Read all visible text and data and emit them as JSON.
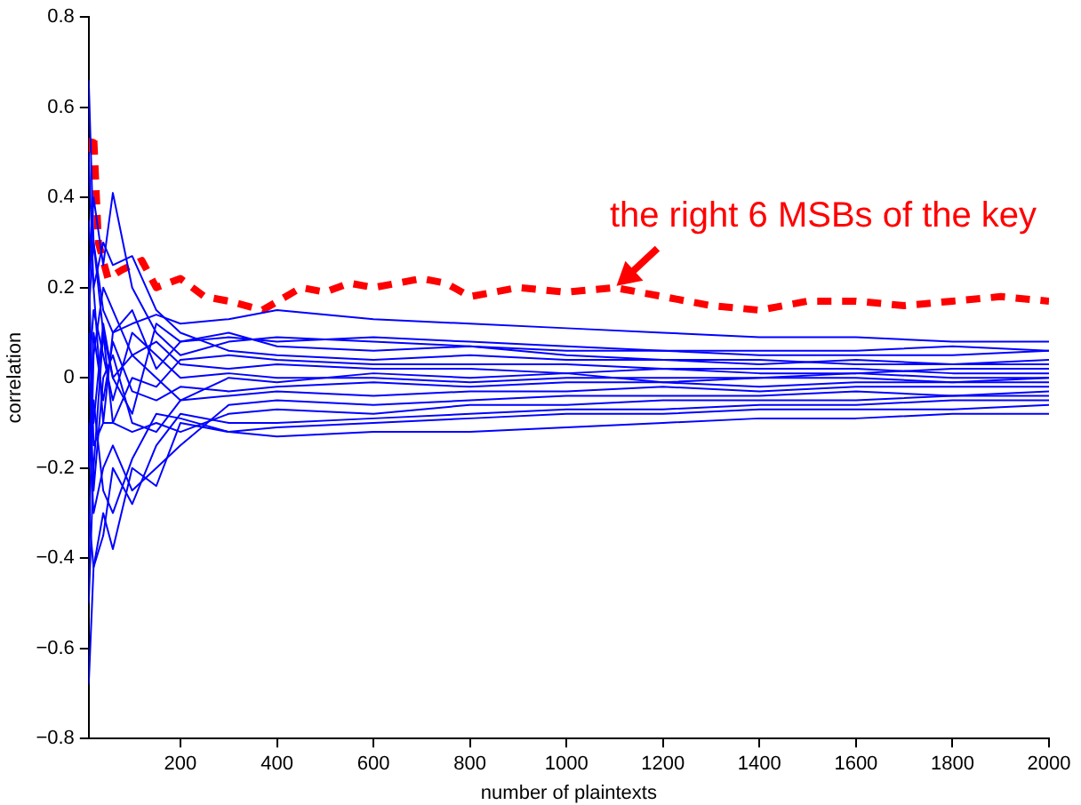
{
  "chart_data": {
    "type": "line",
    "xlabel": "number of plaintexts",
    "ylabel": "correlation",
    "x": [
      10,
      20,
      40,
      60,
      100,
      150,
      200,
      300,
      400,
      600,
      800,
      1000,
      1200,
      1400,
      1600,
      1800,
      2000
    ],
    "xlim": [
      10,
      2000
    ],
    "xticks": [
      200,
      400,
      600,
      800,
      1000,
      1200,
      1400,
      1600,
      1800,
      2000
    ],
    "ylim": [
      -0.8,
      0.8
    ],
    "yticks": [
      {
        "value": -0.8,
        "label": "−0.8"
      },
      {
        "value": -0.6,
        "label": "−0.6"
      },
      {
        "value": -0.4,
        "label": "−0.4"
      },
      {
        "value": -0.2,
        "label": "−0.2"
      },
      0,
      0.2,
      0.4,
      0.6,
      0.8
    ],
    "grid": false,
    "legend": false,
    "marker": "none",
    "line_style": "solid",
    "annotations": [
      {
        "text": "the right 6 MSBs of the key",
        "x": 1100,
        "y": 0.2
      }
    ],
    "series": [
      {
        "color": "#0000ff",
        "values": [
          0.66,
          0.3,
          0.15,
          0.1,
          0.12,
          0.14,
          0.12,
          0.13,
          0.15,
          0.13,
          0.12,
          0.11,
          0.1,
          0.09,
          0.09,
          0.08,
          0.08
        ]
      },
      {
        "color": "#0000ff",
        "values": [
          -0.68,
          -0.42,
          -0.3,
          -0.38,
          -0.2,
          -0.24,
          -0.1,
          -0.12,
          -0.13,
          -0.12,
          -0.12,
          -0.11,
          -0.1,
          -0.09,
          -0.09,
          -0.08,
          -0.08
        ]
      },
      {
        "color": "#0000ff",
        "values": [
          0.2,
          0.4,
          0.25,
          0.41,
          0.2,
          0.1,
          0.05,
          0.08,
          0.09,
          0.08,
          0.07,
          0.06,
          0.06,
          0.05,
          0.05,
          0.05,
          0.06
        ]
      },
      {
        "color": "#0000ff",
        "values": [
          -0.3,
          -0.42,
          -0.35,
          -0.2,
          -0.28,
          -0.15,
          -0.08,
          -0.1,
          -0.1,
          -0.09,
          -0.08,
          -0.07,
          -0.07,
          -0.06,
          -0.06,
          -0.05,
          -0.05
        ]
      },
      {
        "color": "#0000ff",
        "values": [
          0.35,
          0.2,
          0.3,
          0.25,
          0.27,
          0.15,
          0.1,
          0.06,
          0.05,
          0.04,
          0.05,
          0.04,
          0.04,
          0.03,
          0.04,
          0.03,
          0.04
        ]
      },
      {
        "color": "#0000ff",
        "values": [
          -0.1,
          -0.3,
          -0.2,
          -0.15,
          -0.25,
          -0.2,
          -0.15,
          -0.06,
          -0.05,
          -0.06,
          -0.05,
          -0.04,
          -0.04,
          -0.04,
          -0.03,
          -0.04,
          -0.03
        ]
      },
      {
        "color": "#0000ff",
        "values": [
          0.1,
          -0.1,
          0.12,
          0,
          0.05,
          0.08,
          0.03,
          0.02,
          0.03,
          0.02,
          0.02,
          0.01,
          0.02,
          0.01,
          0.01,
          0.02,
          0.02
        ]
      },
      {
        "color": "#0000ff",
        "values": [
          -0.2,
          0.1,
          -0.05,
          0.08,
          -0.03,
          -0.05,
          -0.02,
          -0.03,
          -0.02,
          -0.01,
          -0.02,
          -0.01,
          -0.01,
          -0.02,
          -0.01,
          -0.01,
          -0.01
        ]
      },
      {
        "color": "#0000ff",
        "values": [
          0.5,
          0.2,
          -0.1,
          0.1,
          0.15,
          0.02,
          0.08,
          0.1,
          0.07,
          0.06,
          0.07,
          0.05,
          0.04,
          0.04,
          0.03,
          0.03,
          0.03
        ]
      },
      {
        "color": "#0000ff",
        "values": [
          -0.5,
          -0.2,
          0.1,
          -0.1,
          -0.12,
          -0.1,
          -0.12,
          -0.08,
          -0.07,
          -0.08,
          -0.06,
          -0.06,
          -0.05,
          -0.05,
          -0.05,
          -0.04,
          -0.04
        ]
      },
      {
        "color": "#0000ff",
        "values": [
          0,
          0.15,
          0.05,
          -0.05,
          0.1,
          0.05,
          0,
          0.01,
          0,
          0,
          -0.01,
          0,
          0,
          0,
          0.01,
          0,
          0
        ]
      },
      {
        "color": "#0000ff",
        "values": [
          0.25,
          -0.15,
          -0.1,
          -0.1,
          0,
          -0.02,
          0.04,
          0.05,
          0.04,
          0.03,
          0.03,
          0.03,
          0.02,
          0.02,
          0.02,
          0.01,
          0.01
        ]
      },
      {
        "color": "#0000ff",
        "values": [
          -0.4,
          0.05,
          0.2,
          0.15,
          0.05,
          0,
          -0.05,
          -0.04,
          -0.03,
          -0.04,
          -0.03,
          -0.03,
          -0.02,
          -0.03,
          -0.02,
          -0.02,
          -0.02
        ]
      },
      {
        "color": "#0000ff",
        "values": [
          0.15,
          0.3,
          0.1,
          0,
          -0.08,
          0.12,
          0.08,
          0.09,
          0.08,
          0.09,
          0.08,
          0.07,
          0.06,
          0.06,
          0.06,
          0.07,
          0.06
        ]
      },
      {
        "color": "#0000ff",
        "values": [
          -0.15,
          -0.05,
          -0.25,
          -0.3,
          -0.18,
          -0.08,
          -0.09,
          -0.12,
          -0.11,
          -0.1,
          -0.09,
          -0.08,
          -0.08,
          -0.07,
          -0.07,
          -0.07,
          -0.06
        ]
      },
      {
        "color": "#0000ff",
        "values": [
          0.05,
          -0.25,
          0,
          0.05,
          -0.1,
          -0.12,
          -0.05,
          0,
          -0.01,
          0.01,
          0,
          0.01,
          -0.01,
          0,
          0,
          -0.01,
          0
        ]
      },
      {
        "color": "#ff0000",
        "line_style": "dashed",
        "x": [
          10,
          20,
          30,
          50,
          80,
          120,
          150,
          200,
          250,
          300,
          370,
          450,
          500,
          550,
          600,
          700,
          750,
          800,
          900,
          1000,
          1100,
          1200,
          1300,
          1400,
          1500,
          1600,
          1700,
          1800,
          1900,
          2000
        ],
        "values": [
          0.5,
          0.54,
          0.3,
          0.22,
          0.24,
          0.26,
          0.2,
          0.22,
          0.18,
          0.17,
          0.15,
          0.2,
          0.19,
          0.21,
          0.2,
          0.22,
          0.21,
          0.18,
          0.2,
          0.19,
          0.2,
          0.18,
          0.16,
          0.15,
          0.17,
          0.17,
          0.16,
          0.17,
          0.18,
          0.17
        ]
      }
    ]
  }
}
